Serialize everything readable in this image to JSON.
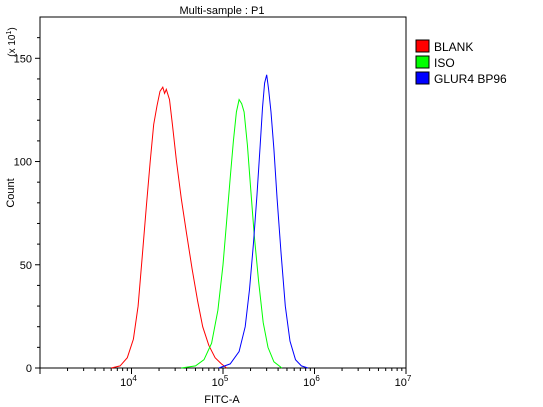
{
  "chart_data": {
    "type": "line",
    "title": "Multi-sample : P1",
    "xlabel": "FITC-A",
    "ylabel": "Count",
    "y_multiplier_label": "(x 10",
    "y_multiplier_exp": "1",
    "y_multiplier_close": ")",
    "x_scale": "log",
    "xlim": [
      1000,
      10000000
    ],
    "ylim": [
      0,
      170
    ],
    "y_ticks": [
      0,
      50,
      100,
      150
    ],
    "x_ticks": [
      {
        "base": "10",
        "exp": "4",
        "value": 10000
      },
      {
        "base": "10",
        "exp": "5",
        "value": 100000
      },
      {
        "base": "10",
        "exp": "6",
        "value": 1000000
      },
      {
        "base": "10",
        "exp": "7",
        "value": 10000000
      }
    ],
    "grid": false,
    "legend_position": "top-right",
    "series": [
      {
        "name": "BLANK",
        "color": "#ff0000",
        "points": [
          [
            6000,
            0
          ],
          [
            7500,
            1
          ],
          [
            9000,
            5
          ],
          [
            10500,
            14
          ],
          [
            11800,
            30
          ],
          [
            13000,
            52
          ],
          [
            14500,
            78
          ],
          [
            16000,
            100
          ],
          [
            17500,
            118
          ],
          [
            19000,
            127
          ],
          [
            20500,
            134
          ],
          [
            22000,
            136
          ],
          [
            23000,
            133
          ],
          [
            24000,
            135
          ],
          [
            26000,
            130
          ],
          [
            28000,
            118
          ],
          [
            31000,
            100
          ],
          [
            35000,
            82
          ],
          [
            40000,
            65
          ],
          [
            46000,
            48
          ],
          [
            53000,
            32
          ],
          [
            60000,
            20
          ],
          [
            70000,
            11
          ],
          [
            82000,
            5
          ],
          [
            96000,
            2
          ],
          [
            110000,
            0
          ]
        ]
      },
      {
        "name": "ISO",
        "color": "#00ff00",
        "points": [
          [
            35000,
            0
          ],
          [
            50000,
            1
          ],
          [
            62000,
            4
          ],
          [
            75000,
            12
          ],
          [
            88000,
            28
          ],
          [
            100000,
            50
          ],
          [
            110000,
            72
          ],
          [
            120000,
            92
          ],
          [
            130000,
            110
          ],
          [
            140000,
            124
          ],
          [
            150000,
            130
          ],
          [
            160000,
            128
          ],
          [
            170000,
            124
          ],
          [
            185000,
            108
          ],
          [
            200000,
            88
          ],
          [
            220000,
            64
          ],
          [
            245000,
            42
          ],
          [
            275000,
            22
          ],
          [
            310000,
            10
          ],
          [
            360000,
            3
          ],
          [
            440000,
            0
          ]
        ]
      },
      {
        "name": "GLUR4 BP96",
        "color": "#0000ff",
        "points": [
          [
            90000,
            0
          ],
          [
            120000,
            2
          ],
          [
            150000,
            8
          ],
          [
            175000,
            20
          ],
          [
            195000,
            38
          ],
          [
            215000,
            60
          ],
          [
            235000,
            84
          ],
          [
            255000,
            108
          ],
          [
            270000,
            126
          ],
          [
            285000,
            138
          ],
          [
            300000,
            142
          ],
          [
            315000,
            135
          ],
          [
            335000,
            124
          ],
          [
            360000,
            106
          ],
          [
            390000,
            82
          ],
          [
            430000,
            56
          ],
          [
            480000,
            30
          ],
          [
            540000,
            13
          ],
          [
            620000,
            4
          ],
          [
            720000,
            1
          ],
          [
            850000,
            0
          ]
        ]
      }
    ]
  }
}
